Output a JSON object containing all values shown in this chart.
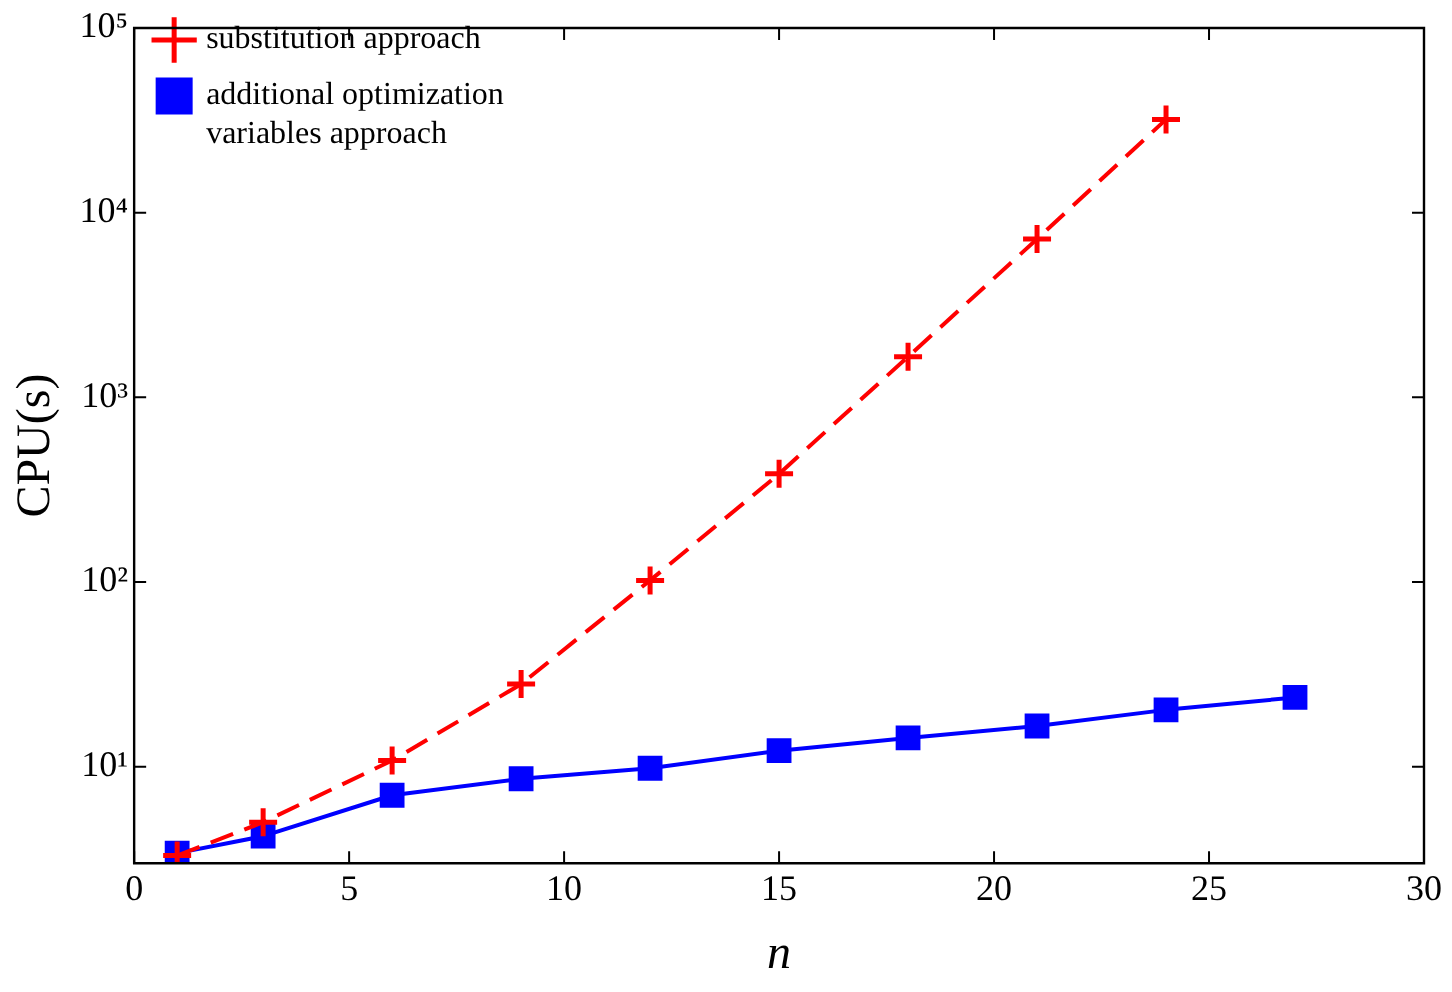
{
  "chart_data": {
    "type": "line",
    "xlabel": "n",
    "ylabel": "CPU(s)",
    "log": "y",
    "grid": false,
    "legend": "top left",
    "xlim": [
      0,
      30
    ],
    "xticks": [
      0,
      5,
      10,
      15,
      20,
      25,
      30
    ],
    "ylim": [
      3,
      100000
    ],
    "yticks": [
      {
        "value": 10,
        "label": "10¹"
      },
      {
        "value": 100,
        "label": "10²"
      },
      {
        "value": 1000,
        "label": "10³"
      },
      {
        "value": 10000,
        "label": "10⁴"
      },
      {
        "value": 100000,
        "label": "10⁵"
      }
    ],
    "series": [
      {
        "name": "substitution approach",
        "color": "#ff0000",
        "marker": "cross",
        "line_style": "dashed",
        "x": [
          1,
          3,
          6,
          9,
          12,
          15,
          18,
          21,
          24
        ],
        "values": [
          3.3,
          5.0,
          10.8,
          28,
          102,
          385,
          1660,
          7200,
          32000
        ]
      },
      {
        "name": "additional optimization variables approach",
        "color": "#0000ff",
        "marker": "square",
        "line_style": "solid",
        "x": [
          1,
          3,
          6,
          9,
          12,
          15,
          18,
          21,
          24,
          27
        ],
        "values": [
          3.4,
          4.2,
          7.0,
          8.6,
          9.8,
          12.2,
          14.3,
          16.6,
          20.3,
          23.7
        ]
      }
    ]
  }
}
